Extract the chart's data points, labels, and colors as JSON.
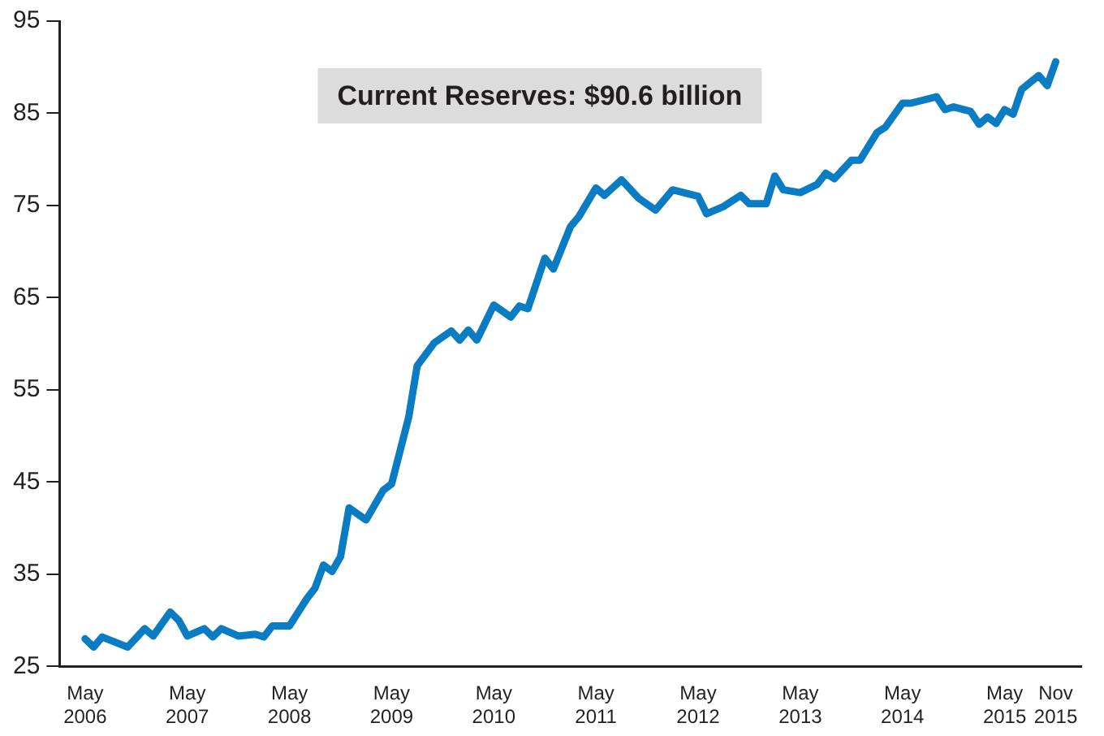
{
  "chart_data": {
    "type": "line",
    "annotations": [
      "Current Reserves: $90.6 billion"
    ],
    "x": [
      "2006-05",
      "2006-06",
      "2006-07",
      "2006-10",
      "2006-12",
      "2007-01",
      "2007-03",
      "2007-04",
      "2007-05",
      "2007-07",
      "2007-08",
      "2007-09",
      "2007-11",
      "2008-01",
      "2008-02",
      "2008-03",
      "2008-05",
      "2008-07",
      "2008-08",
      "2008-09",
      "2008-10",
      "2008-11",
      "2008-12",
      "2009-02",
      "2009-04",
      "2009-05",
      "2009-07",
      "2009-08",
      "2009-10",
      "2009-12",
      "2010-01",
      "2010-02",
      "2010-03",
      "2010-05",
      "2010-07",
      "2010-08",
      "2010-09",
      "2010-11",
      "2010-12",
      "2011-02",
      "2011-03",
      "2011-05",
      "2011-06",
      "2011-08",
      "2011-10",
      "2011-12",
      "2012-02",
      "2012-05",
      "2012-06",
      "2012-08",
      "2012-10",
      "2012-11",
      "2013-01",
      "2013-02",
      "2013-03",
      "2013-05",
      "2013-07",
      "2013-08",
      "2013-09",
      "2013-11",
      "2013-12",
      "2014-02",
      "2014-03",
      "2014-05",
      "2014-06",
      "2014-09",
      "2014-10",
      "2014-11",
      "2015-01",
      "2015-02",
      "2015-03",
      "2015-04",
      "2015-05",
      "2015-06",
      "2015-07",
      "2015-09",
      "2015-10",
      "2015-11"
    ],
    "series": [
      {
        "color": "#0a7cc4",
        "values": [
          28.0,
          27.1,
          28.2,
          27.1,
          29.1,
          28.3,
          30.9,
          30.0,
          28.3,
          29.1,
          28.2,
          29.1,
          28.3,
          28.5,
          28.2,
          29.4,
          29.4,
          32.3,
          33.5,
          36.0,
          35.3,
          36.9,
          42.2,
          40.9,
          44.1,
          44.8,
          52.0,
          57.6,
          60.1,
          61.4,
          60.4,
          61.5,
          60.4,
          64.2,
          62.9,
          64.1,
          63.8,
          69.3,
          68.1,
          72.7,
          73.8,
          76.9,
          76.1,
          77.8,
          75.8,
          74.5,
          76.7,
          76.0,
          74.1,
          74.9,
          76.1,
          75.2,
          75.2,
          78.2,
          76.7,
          76.4,
          77.3,
          78.5,
          77.9,
          79.9,
          79.9,
          82.9,
          83.5,
          86.1,
          86.1,
          86.8,
          85.4,
          85.7,
          85.2,
          83.8,
          84.6,
          83.9,
          85.4,
          84.9,
          87.6,
          89.1,
          88.0,
          90.6
        ]
      }
    ],
    "xlim": [
      "2006-02",
      "2016-02"
    ],
    "xticks": [
      {
        "value": "2006-05",
        "label": "May 2006"
      },
      {
        "value": "2007-05",
        "label": "May 2007"
      },
      {
        "value": "2008-05",
        "label": "May 2008"
      },
      {
        "value": "2009-05",
        "label": "May 2009"
      },
      {
        "value": "2010-05",
        "label": "May 2010"
      },
      {
        "value": "2011-05",
        "label": "May 2011"
      },
      {
        "value": "2012-05",
        "label": "May 2012"
      },
      {
        "value": "2013-05",
        "label": "May 2013"
      },
      {
        "value": "2014-05",
        "label": "May 2014"
      },
      {
        "value": "2015-05",
        "label": "May 2015"
      },
      {
        "value": "2015-11",
        "label": "Nov 2015"
      }
    ],
    "ylim": [
      25,
      95
    ],
    "yticks": [
      25,
      35,
      45,
      55,
      65,
      75,
      85,
      95
    ],
    "grid": false,
    "legend": false,
    "marker": "none",
    "line_style": "solid"
  }
}
